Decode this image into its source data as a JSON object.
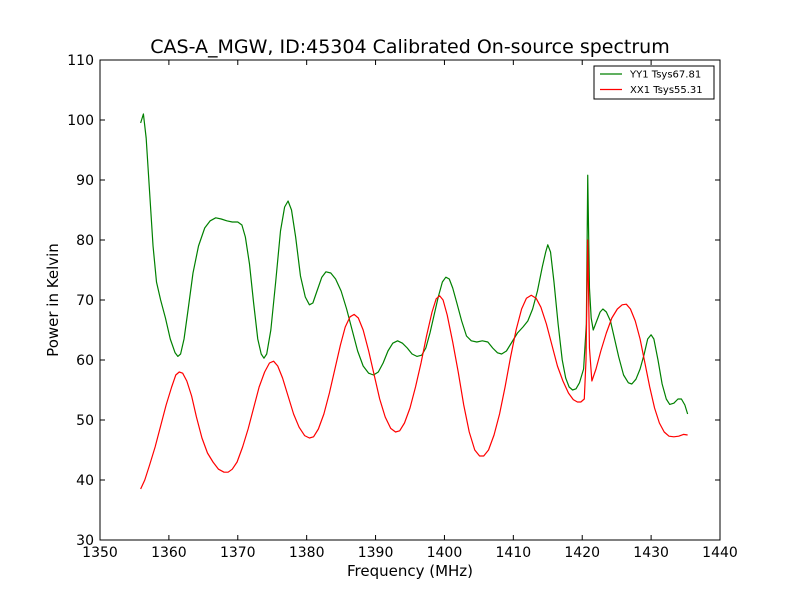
{
  "chart_data": {
    "type": "line",
    "title": "CAS-A_MGW, ID:45304 Calibrated On-source spectrum",
    "xlabel": "Frequency (MHz)",
    "ylabel": "Power in Kelvin",
    "xlim": [
      1350,
      1440
    ],
    "ylim": [
      30,
      110
    ],
    "xticks": [
      1350,
      1360,
      1370,
      1380,
      1390,
      1400,
      1410,
      1420,
      1430,
      1440
    ],
    "yticks": [
      30,
      40,
      50,
      60,
      70,
      80,
      90,
      100,
      110
    ],
    "grid": false,
    "legend_position": "top-right",
    "series": [
      {
        "name": "YY1 Tsys67.81",
        "color": "#008000",
        "points": [
          [
            1355.9,
            99.5
          ],
          [
            1356.3,
            101.0
          ],
          [
            1356.7,
            97.0
          ],
          [
            1357.2,
            88.0
          ],
          [
            1357.7,
            79.0
          ],
          [
            1358.2,
            73.0
          ],
          [
            1358.8,
            70.0
          ],
          [
            1359.5,
            67.0
          ],
          [
            1360.2,
            63.5
          ],
          [
            1360.9,
            61.2
          ],
          [
            1361.3,
            60.6
          ],
          [
            1361.7,
            61.0
          ],
          [
            1362.2,
            63.5
          ],
          [
            1362.8,
            68.5
          ],
          [
            1363.5,
            74.5
          ],
          [
            1364.3,
            79.0
          ],
          [
            1365.2,
            82.0
          ],
          [
            1366.0,
            83.2
          ],
          [
            1366.8,
            83.7
          ],
          [
            1367.6,
            83.5
          ],
          [
            1368.4,
            83.2
          ],
          [
            1369.2,
            83.0
          ],
          [
            1370.0,
            83.0
          ],
          [
            1370.6,
            82.5
          ],
          [
            1371.1,
            80.5
          ],
          [
            1371.7,
            76.0
          ],
          [
            1372.3,
            69.5
          ],
          [
            1372.9,
            63.5
          ],
          [
            1373.4,
            61.0
          ],
          [
            1373.8,
            60.3
          ],
          [
            1374.2,
            61.0
          ],
          [
            1374.8,
            65.0
          ],
          [
            1375.5,
            73.0
          ],
          [
            1376.2,
            81.5
          ],
          [
            1376.8,
            85.5
          ],
          [
            1377.3,
            86.5
          ],
          [
            1377.8,
            85.0
          ],
          [
            1378.4,
            80.5
          ],
          [
            1379.1,
            74.0
          ],
          [
            1379.8,
            70.5
          ],
          [
            1380.4,
            69.2
          ],
          [
            1380.9,
            69.5
          ],
          [
            1381.5,
            71.5
          ],
          [
            1382.2,
            73.8
          ],
          [
            1382.8,
            74.7
          ],
          [
            1383.5,
            74.5
          ],
          [
            1384.2,
            73.5
          ],
          [
            1385.0,
            71.5
          ],
          [
            1385.8,
            68.5
          ],
          [
            1386.6,
            65.0
          ],
          [
            1387.4,
            61.5
          ],
          [
            1388.2,
            59.0
          ],
          [
            1389.0,
            57.8
          ],
          [
            1389.7,
            57.5
          ],
          [
            1390.4,
            58.0
          ],
          [
            1391.1,
            59.5
          ],
          [
            1391.8,
            61.5
          ],
          [
            1392.5,
            62.8
          ],
          [
            1393.2,
            63.2
          ],
          [
            1393.9,
            62.8
          ],
          [
            1394.6,
            62.0
          ],
          [
            1395.3,
            61.0
          ],
          [
            1396.0,
            60.6
          ],
          [
            1396.7,
            60.8
          ],
          [
            1397.3,
            62.0
          ],
          [
            1397.9,
            64.5
          ],
          [
            1398.5,
            67.5
          ],
          [
            1399.1,
            70.5
          ],
          [
            1399.7,
            73.0
          ],
          [
            1400.2,
            73.8
          ],
          [
            1400.7,
            73.5
          ],
          [
            1401.2,
            72.0
          ],
          [
            1401.8,
            69.5
          ],
          [
            1402.5,
            66.5
          ],
          [
            1403.2,
            64.0
          ],
          [
            1403.9,
            63.2
          ],
          [
            1404.7,
            63.0
          ],
          [
            1405.5,
            63.2
          ],
          [
            1406.3,
            63.0
          ],
          [
            1407.0,
            62.0
          ],
          [
            1407.7,
            61.2
          ],
          [
            1408.3,
            61.0
          ],
          [
            1409.0,
            61.5
          ],
          [
            1409.8,
            63.0
          ],
          [
            1410.6,
            64.5
          ],
          [
            1411.4,
            65.5
          ],
          [
            1412.1,
            66.5
          ],
          [
            1412.8,
            68.5
          ],
          [
            1413.5,
            71.5
          ],
          [
            1414.2,
            75.5
          ],
          [
            1414.7,
            78.0
          ],
          [
            1415.0,
            79.2
          ],
          [
            1415.4,
            78.0
          ],
          [
            1415.9,
            73.0
          ],
          [
            1416.5,
            66.0
          ],
          [
            1417.1,
            60.0
          ],
          [
            1417.6,
            57.0
          ],
          [
            1418.1,
            55.5
          ],
          [
            1418.6,
            55.0
          ],
          [
            1419.1,
            55.2
          ],
          [
            1419.6,
            56.2
          ],
          [
            1420.2,
            58.5
          ],
          [
            1420.6,
            66.0
          ],
          [
            1420.8,
            90.8
          ],
          [
            1421.05,
            72.0
          ],
          [
            1421.3,
            67.0
          ],
          [
            1421.6,
            65.0
          ],
          [
            1422.1,
            66.5
          ],
          [
            1422.6,
            68.0
          ],
          [
            1423.0,
            68.5
          ],
          [
            1423.5,
            68.0
          ],
          [
            1424.1,
            66.5
          ],
          [
            1424.7,
            63.5
          ],
          [
            1425.3,
            60.5
          ],
          [
            1426.0,
            57.5
          ],
          [
            1426.7,
            56.2
          ],
          [
            1427.2,
            56.0
          ],
          [
            1427.8,
            56.8
          ],
          [
            1428.4,
            58.5
          ],
          [
            1429.0,
            61.0
          ],
          [
            1429.5,
            63.5
          ],
          [
            1430.0,
            64.2
          ],
          [
            1430.4,
            63.5
          ],
          [
            1431.0,
            60.0
          ],
          [
            1431.6,
            56.0
          ],
          [
            1432.2,
            53.5
          ],
          [
            1432.7,
            52.6
          ],
          [
            1433.3,
            52.8
          ],
          [
            1433.9,
            53.5
          ],
          [
            1434.4,
            53.5
          ],
          [
            1434.9,
            52.5
          ],
          [
            1435.3,
            51.0
          ]
        ]
      },
      {
        "name": "XX1 Tsys55.31",
        "color": "#ff0000",
        "points": [
          [
            1355.9,
            38.5
          ],
          [
            1356.5,
            40.0
          ],
          [
            1357.2,
            42.5
          ],
          [
            1358.0,
            45.5
          ],
          [
            1358.8,
            49.0
          ],
          [
            1359.6,
            52.5
          ],
          [
            1360.4,
            55.5
          ],
          [
            1361.0,
            57.5
          ],
          [
            1361.5,
            58.0
          ],
          [
            1362.0,
            57.8
          ],
          [
            1362.6,
            56.5
          ],
          [
            1363.3,
            54.0
          ],
          [
            1364.0,
            50.5
          ],
          [
            1364.8,
            47.0
          ],
          [
            1365.6,
            44.5
          ],
          [
            1366.4,
            43.0
          ],
          [
            1367.2,
            41.8
          ],
          [
            1368.0,
            41.3
          ],
          [
            1368.6,
            41.3
          ],
          [
            1369.2,
            41.8
          ],
          [
            1369.9,
            43.0
          ],
          [
            1370.7,
            45.5
          ],
          [
            1371.5,
            48.5
          ],
          [
            1372.3,
            52.0
          ],
          [
            1373.1,
            55.5
          ],
          [
            1373.9,
            58.0
          ],
          [
            1374.6,
            59.5
          ],
          [
            1375.2,
            59.8
          ],
          [
            1375.8,
            59.0
          ],
          [
            1376.5,
            57.0
          ],
          [
            1377.3,
            54.0
          ],
          [
            1378.1,
            51.0
          ],
          [
            1378.9,
            48.8
          ],
          [
            1379.7,
            47.4
          ],
          [
            1380.4,
            47.0
          ],
          [
            1381.0,
            47.2
          ],
          [
            1381.7,
            48.5
          ],
          [
            1382.5,
            51.0
          ],
          [
            1383.3,
            54.5
          ],
          [
            1384.1,
            58.5
          ],
          [
            1384.9,
            62.5
          ],
          [
            1385.6,
            65.5
          ],
          [
            1386.3,
            67.2
          ],
          [
            1386.9,
            67.6
          ],
          [
            1387.5,
            67.0
          ],
          [
            1388.2,
            65.0
          ],
          [
            1389.0,
            61.5
          ],
          [
            1389.8,
            57.5
          ],
          [
            1390.6,
            53.5
          ],
          [
            1391.4,
            50.5
          ],
          [
            1392.2,
            48.6
          ],
          [
            1392.9,
            48.0
          ],
          [
            1393.5,
            48.2
          ],
          [
            1394.2,
            49.5
          ],
          [
            1395.0,
            52.0
          ],
          [
            1395.8,
            55.5
          ],
          [
            1396.6,
            59.5
          ],
          [
            1397.4,
            64.0
          ],
          [
            1398.2,
            68.0
          ],
          [
            1398.8,
            70.2
          ],
          [
            1399.3,
            70.7
          ],
          [
            1399.8,
            70.0
          ],
          [
            1400.4,
            67.5
          ],
          [
            1401.2,
            63.0
          ],
          [
            1402.0,
            58.0
          ],
          [
            1402.8,
            52.5
          ],
          [
            1403.6,
            48.0
          ],
          [
            1404.4,
            45.0
          ],
          [
            1405.1,
            44.0
          ],
          [
            1405.7,
            44.0
          ],
          [
            1406.4,
            45.0
          ],
          [
            1407.2,
            47.5
          ],
          [
            1408.0,
            51.0
          ],
          [
            1408.8,
            55.5
          ],
          [
            1409.6,
            60.5
          ],
          [
            1410.4,
            65.0
          ],
          [
            1411.2,
            68.5
          ],
          [
            1411.9,
            70.3
          ],
          [
            1412.6,
            70.8
          ],
          [
            1413.3,
            70.3
          ],
          [
            1414.0,
            68.8
          ],
          [
            1414.8,
            66.0
          ],
          [
            1415.6,
            62.5
          ],
          [
            1416.4,
            59.0
          ],
          [
            1417.2,
            56.5
          ],
          [
            1418.0,
            54.5
          ],
          [
            1418.7,
            53.4
          ],
          [
            1419.3,
            53.0
          ],
          [
            1419.8,
            53.0
          ],
          [
            1420.3,
            53.5
          ],
          [
            1420.55,
            60.0
          ],
          [
            1420.8,
            80.0
          ],
          [
            1421.05,
            62.0
          ],
          [
            1421.4,
            56.5
          ],
          [
            1422.0,
            58.5
          ],
          [
            1422.7,
            61.5
          ],
          [
            1423.5,
            64.5
          ],
          [
            1424.3,
            67.0
          ],
          [
            1425.1,
            68.5
          ],
          [
            1425.8,
            69.2
          ],
          [
            1426.4,
            69.3
          ],
          [
            1427.0,
            68.5
          ],
          [
            1427.7,
            66.5
          ],
          [
            1428.4,
            63.5
          ],
          [
            1429.1,
            59.5
          ],
          [
            1429.8,
            55.5
          ],
          [
            1430.5,
            52.0
          ],
          [
            1431.2,
            49.5
          ],
          [
            1431.9,
            48.0
          ],
          [
            1432.6,
            47.3
          ],
          [
            1433.3,
            47.2
          ],
          [
            1434.0,
            47.3
          ],
          [
            1434.7,
            47.6
          ],
          [
            1435.3,
            47.5
          ]
        ]
      }
    ]
  }
}
